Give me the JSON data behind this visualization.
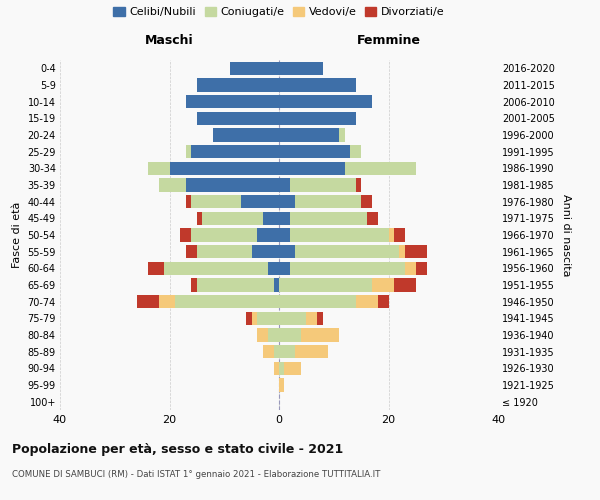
{
  "age_groups": [
    "100+",
    "95-99",
    "90-94",
    "85-89",
    "80-84",
    "75-79",
    "70-74",
    "65-69",
    "60-64",
    "55-59",
    "50-54",
    "45-49",
    "40-44",
    "35-39",
    "30-34",
    "25-29",
    "20-24",
    "15-19",
    "10-14",
    "5-9",
    "0-4"
  ],
  "birth_years": [
    "≤ 1920",
    "1921-1925",
    "1926-1930",
    "1931-1935",
    "1936-1940",
    "1941-1945",
    "1946-1950",
    "1951-1955",
    "1956-1960",
    "1961-1965",
    "1966-1970",
    "1971-1975",
    "1976-1980",
    "1981-1985",
    "1986-1990",
    "1991-1995",
    "1996-2000",
    "2001-2005",
    "2006-2010",
    "2011-2015",
    "2016-2020"
  ],
  "maschi": {
    "celibi": [
      0,
      0,
      0,
      0,
      0,
      0,
      0,
      1,
      2,
      5,
      4,
      3,
      7,
      17,
      20,
      16,
      12,
      15,
      17,
      15,
      9
    ],
    "coniugati": [
      0,
      0,
      0,
      1,
      2,
      4,
      19,
      14,
      19,
      10,
      12,
      11,
      9,
      5,
      4,
      1,
      0,
      0,
      0,
      0,
      0
    ],
    "vedovi": [
      0,
      0,
      1,
      2,
      2,
      1,
      3,
      0,
      0,
      0,
      0,
      0,
      0,
      0,
      0,
      0,
      0,
      0,
      0,
      0,
      0
    ],
    "divorziati": [
      0,
      0,
      0,
      0,
      0,
      1,
      4,
      1,
      3,
      2,
      2,
      1,
      1,
      0,
      0,
      0,
      0,
      0,
      0,
      0,
      0
    ]
  },
  "femmine": {
    "nubili": [
      0,
      0,
      0,
      0,
      0,
      0,
      0,
      0,
      2,
      3,
      2,
      2,
      3,
      2,
      12,
      13,
      11,
      14,
      17,
      14,
      8
    ],
    "coniugate": [
      0,
      0,
      1,
      3,
      4,
      5,
      14,
      17,
      21,
      19,
      18,
      14,
      12,
      12,
      13,
      2,
      1,
      0,
      0,
      0,
      0
    ],
    "vedove": [
      0,
      1,
      3,
      6,
      7,
      2,
      4,
      4,
      2,
      1,
      1,
      0,
      0,
      0,
      0,
      0,
      0,
      0,
      0,
      0,
      0
    ],
    "divorziate": [
      0,
      0,
      0,
      0,
      0,
      1,
      2,
      4,
      2,
      4,
      2,
      2,
      2,
      1,
      0,
      0,
      0,
      0,
      0,
      0,
      0
    ]
  },
  "colors": {
    "celibi": "#3e6fa8",
    "coniugati": "#c5d9a0",
    "vedovi": "#f5c97a",
    "divorziati": "#c0392b"
  },
  "xlim": 40,
  "title": "Popolazione per età, sesso e stato civile - 2021",
  "subtitle": "COMUNE DI SAMBUCI (RM) - Dati ISTAT 1° gennaio 2021 - Elaborazione TUTTITALIA.IT",
  "ylabel_left": "Fasce di età",
  "ylabel_right": "Anni di nascita",
  "xlabel_left": "Maschi",
  "xlabel_right": "Femmine",
  "legend_labels": [
    "Celibi/Nubili",
    "Coniugati/e",
    "Vedovi/e",
    "Divorziati/e"
  ],
  "bg_color": "#f9f9f9"
}
